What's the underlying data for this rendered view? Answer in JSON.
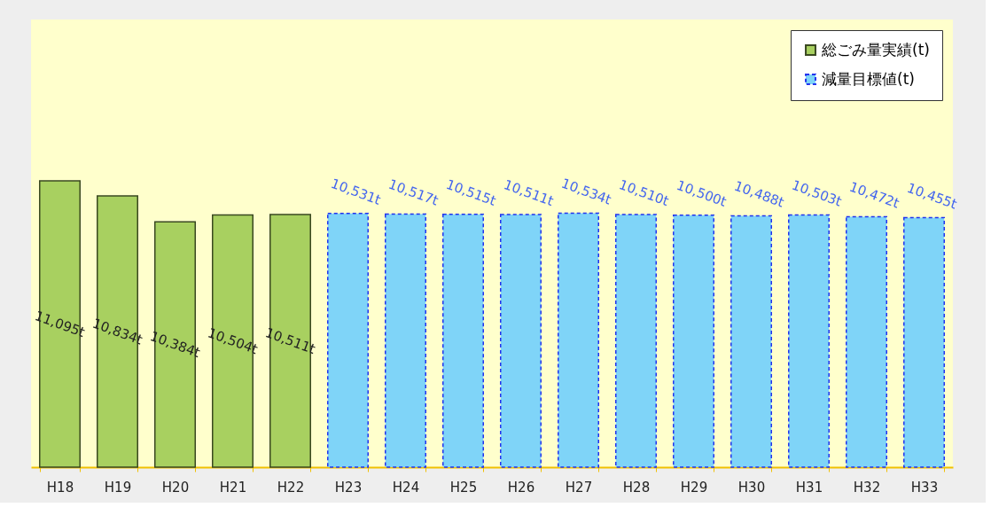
{
  "chart_data": {
    "type": "bar",
    "categories": [
      "H18",
      "H19",
      "H20",
      "H21",
      "H22",
      "H23",
      "H24",
      "H25",
      "H26",
      "H27",
      "H28",
      "H29",
      "H30",
      "H31",
      "H32",
      "H33"
    ],
    "series": [
      {
        "name": "総ごみ量実績(t)",
        "color": "#a8d060",
        "values": [
          11095,
          10834,
          10384,
          10504,
          10511,
          null,
          null,
          null,
          null,
          null,
          null,
          null,
          null,
          null,
          null,
          null
        ],
        "value_labels": [
          "11,095t",
          "10,834t",
          "10,384t",
          "10,504t",
          "10,511t",
          null,
          null,
          null,
          null,
          null,
          null,
          null,
          null,
          null,
          null,
          null
        ]
      },
      {
        "name": "減量目標値(t)",
        "color": "#7fd4f8",
        "line_style": "dashed",
        "values": [
          null,
          null,
          null,
          null,
          null,
          10531,
          10517,
          10515,
          10511,
          10534,
          10510,
          10500,
          10488,
          10503,
          10472,
          10455
        ],
        "value_labels": [
          null,
          null,
          null,
          null,
          null,
          "10,531t",
          "10,517t",
          "10,515t",
          "10,511t",
          "10,534t",
          "10,510t",
          "10,500t",
          "10,488t",
          "10,503t",
          "10,472t",
          "10,455t"
        ]
      }
    ],
    "ylim": [
      6120,
      13900
    ],
    "legend": "top right",
    "grid": false
  }
}
